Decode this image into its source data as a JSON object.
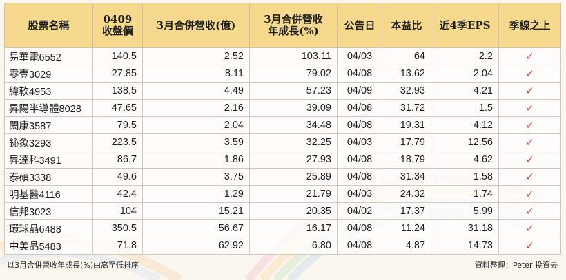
{
  "colors": {
    "header_bg": "#f6d98c",
    "check": "#e0453a",
    "background": "#fbf6ee"
  },
  "headers": {
    "name": "股票名稱",
    "close_line1": "0409",
    "close_line2": "收盤價",
    "revenue": "3月合併營收(億)",
    "growth_line1": "3月合併營收",
    "growth_line2": "年成長(%)",
    "date": "公告日",
    "pe": "本益比",
    "eps": "近4季EPS",
    "above": "季線之上"
  },
  "rows": [
    {
      "name": "易華電6552",
      "close": "140.5",
      "revenue": "2.52",
      "growth": "103.11",
      "date": "04/03",
      "pe": "64",
      "eps": "2.2",
      "above": "✓"
    },
    {
      "name": "零壹3029",
      "close": "27.85",
      "revenue": "8.11",
      "growth": "79.02",
      "date": "04/08",
      "pe": "13.62",
      "eps": "2.04",
      "above": "✓"
    },
    {
      "name": "緯軟4953",
      "close": "138.5",
      "revenue": "4.49",
      "growth": "57.23",
      "date": "04/09",
      "pe": "32.93",
      "eps": "4.21",
      "above": "✓"
    },
    {
      "name": "昇陽半導體8028",
      "close": "47.65",
      "revenue": "2.16",
      "growth": "39.09",
      "date": "04/08",
      "pe": "31.72",
      "eps": "1.5",
      "above": "✓"
    },
    {
      "name": "閎康3587",
      "close": "79.5",
      "revenue": "2.04",
      "growth": "34.48",
      "date": "04/08",
      "pe": "19.31",
      "eps": "4.12",
      "above": "✓"
    },
    {
      "name": "鈊象3293",
      "close": "223.5",
      "revenue": "3.59",
      "growth": "32.25",
      "date": "04/03",
      "pe": "17.79",
      "eps": "12.56",
      "above": "✓"
    },
    {
      "name": "昇達科3491",
      "close": "86.7",
      "revenue": "1.86",
      "growth": "27.93",
      "date": "04/08",
      "pe": "18.79",
      "eps": "4.62",
      "above": "✓"
    },
    {
      "name": "泰碩3338",
      "close": "49.6",
      "revenue": "3.75",
      "growth": "25.89",
      "date": "04/08",
      "pe": "31.34",
      "eps": "1.58",
      "above": "✓"
    },
    {
      "name": "明基醫4116",
      "close": "42.4",
      "revenue": "1.29",
      "growth": "21.79",
      "date": "04/03",
      "pe": "24.32",
      "eps": "1.74",
      "above": "✓"
    },
    {
      "name": "信邦3023",
      "close": "104",
      "revenue": "15.21",
      "growth": "20.35",
      "date": "04/02",
      "pe": "17.37",
      "eps": "5.99",
      "above": "✓"
    },
    {
      "name": "環球晶6488",
      "close": "350.5",
      "revenue": "56.67",
      "growth": "16.17",
      "date": "04/08",
      "pe": "11.24",
      "eps": "31.18",
      "above": "✓"
    },
    {
      "name": "中美晶5483",
      "close": "71.8",
      "revenue": "62.92",
      "growth": "6.80",
      "date": "04/08",
      "pe": "4.87",
      "eps": "14.73",
      "above": "✓"
    }
  ],
  "footer": {
    "left": "以3月合併營收年成長(%)由高至低排序",
    "right": "資料整理：Peter 投資去"
  }
}
